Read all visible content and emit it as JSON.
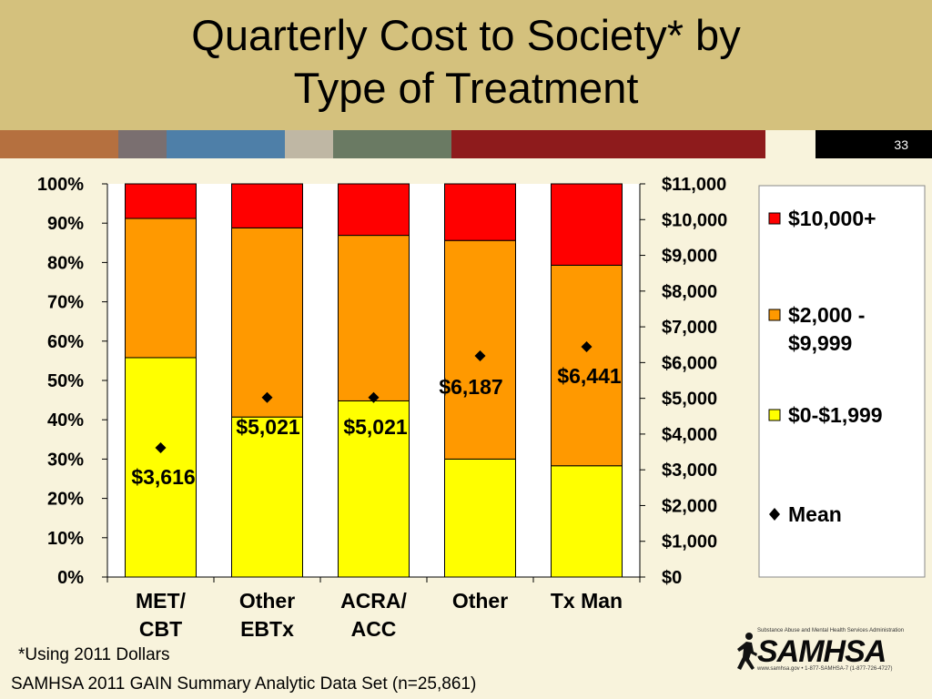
{
  "slide": {
    "title_line1": "Quarterly Cost to Society* by",
    "title_line2": "Type of Treatment",
    "slide_number": "33",
    "footnote": "*Using 2011 Dollars",
    "source": "SAMHSA 2011 GAIN Summary Analytic Data Set (n=25,861)",
    "logo": {
      "icon": "running-figure-icon",
      "tagline": "Substance Abuse and Mental Health Services Administration",
      "wordmark": "SAMHSA",
      "contact": "www.samhsa.gov • 1-877-SAMHSA-7 (1-877-726-4727)"
    },
    "stripe_colors": [
      "#b5703f",
      "#7a6f70",
      "#4e7fa8",
      "#bfb7a4",
      "#6a7a63",
      "#8e1b1c"
    ]
  },
  "chart_data": {
    "type": "bar",
    "stacked": true,
    "categories": [
      [
        "MET/",
        "CBT"
      ],
      [
        "Other",
        "EBTx"
      ],
      [
        "ACRA/",
        "ACC"
      ],
      [
        "Other"
      ],
      [
        "Tx Man"
      ]
    ],
    "series": [
      {
        "name": "$0-$1,999",
        "color": "#ffff00",
        "values": [
          55.8,
          40.7,
          44.8,
          30.0,
          28.3
        ]
      },
      {
        "name": "$2,000 - $9,999",
        "color": "#ff9900",
        "values": [
          35.4,
          48.1,
          42.1,
          55.6,
          51.0
        ]
      },
      {
        "name": "$10,000+",
        "color": "#ff0000",
        "values": [
          8.8,
          11.2,
          13.1,
          14.4,
          20.7
        ]
      }
    ],
    "mean": {
      "name": "Mean",
      "values": [
        3616,
        5021,
        5021,
        6187,
        6441
      ],
      "labels": [
        "$3,616",
        "$5,021",
        "$5,021",
        "$6,187",
        "$6,441"
      ]
    },
    "y_left": {
      "ylim": [
        0,
        100
      ],
      "ticks": [
        "0%",
        "10%",
        "20%",
        "30%",
        "40%",
        "50%",
        "60%",
        "70%",
        "80%",
        "90%",
        "100%"
      ]
    },
    "y_right": {
      "ylim": [
        0,
        11000
      ],
      "ticks": [
        "$0",
        "$1,000",
        "$2,000",
        "$3,000",
        "$4,000",
        "$5,000",
        "$6,000",
        "$7,000",
        "$8,000",
        "$9,000",
        "$10,000",
        "$11,000"
      ]
    },
    "legend": {
      "position": "right",
      "entries": [
        {
          "label_lines": [
            "$10,000+"
          ],
          "color": "#ff0000",
          "marker": "square"
        },
        {
          "label_lines": [
            "$2,000 -",
            "$9,999"
          ],
          "color": "#ff9900",
          "marker": "square"
        },
        {
          "label_lines": [
            "$0-$1,999"
          ],
          "color": "#ffff00",
          "marker": "square"
        },
        {
          "label_lines": [
            "Mean"
          ],
          "color": "#000000",
          "marker": "diamond"
        }
      ]
    }
  }
}
